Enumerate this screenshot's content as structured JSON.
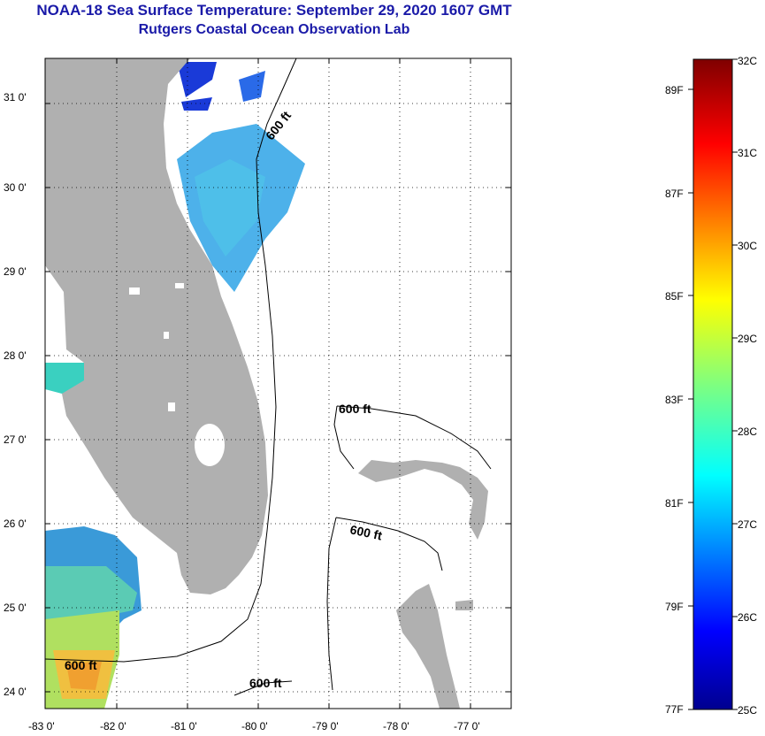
{
  "title": {
    "line1": "NOAA-18 Sea Surface Temperature:  September 29, 2020 1607 GMT",
    "line2": "Rutgers Coastal Ocean Observation Lab"
  },
  "map": {
    "lon_ticks": [
      "-83 0'",
      "-82 0'",
      "-81 0'",
      "-80 0'",
      "-79 0'",
      "-78 0'",
      "-77 0'"
    ],
    "lat_ticks": [
      "24 0'",
      "25 0'",
      "26 0'",
      "27 0'",
      "28 0'",
      "29 0'",
      "30 0'",
      "31 0'"
    ],
    "contour_label": "600 ft",
    "land_color": "#b0b0b0"
  },
  "colorbar": {
    "celsius": [
      "32C",
      "31C",
      "30C",
      "29C",
      "28C",
      "27C",
      "26C",
      "25C"
    ],
    "fahrenheit": [
      "89F",
      "87F",
      "85F",
      "83F",
      "81F",
      "79F",
      "77F"
    ]
  }
}
